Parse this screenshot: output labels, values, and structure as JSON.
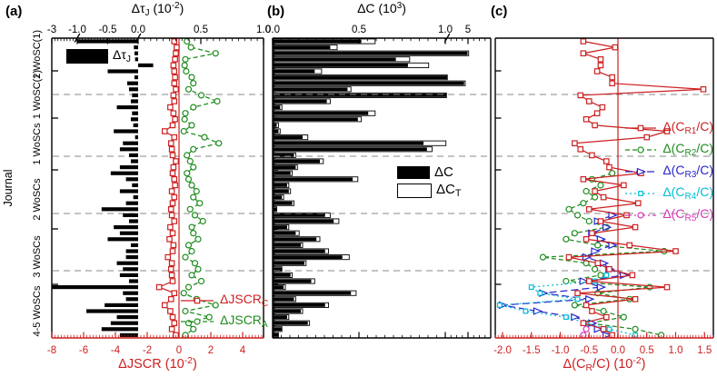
{
  "figure": {
    "panel_a_label": "(a)",
    "panel_b_label": "(b)",
    "panel_c_label": "(c)",
    "y_axis_title": "Journal",
    "journal_groups": [
      "1 WoSC(1)",
      "1 WoSC(2)",
      "1 WoSCs",
      "2 WoSCs",
      "3 WoSCs",
      "4-5 WoSCs"
    ]
  },
  "colors": {
    "red": "#cc2121",
    "green": "#1f8c1f",
    "blue": "#2626cc",
    "cyan": "#00bdd6",
    "magenta": "#d636b8",
    "gray_divider": "#8a8a8a",
    "bar_black": "#000000"
  },
  "panel_a": {
    "top_axis": {
      "title_parts": {
        "pre": "Δτ",
        "sub": "J",
        "mid": " (10",
        "sup": "-2",
        "end": ")"
      },
      "ticks": [
        {
          "label": "-3",
          "v": -3
        },
        {
          "label": "-1.0",
          "v": -1.0
        },
        {
          "label": "-0.5",
          "v": -0.5
        },
        {
          "label": "0.0",
          "v": 0.0
        },
        {
          "label": "0.5",
          "v": 0.5
        },
        {
          "label": "1.0",
          "v": 1.0
        }
      ]
    },
    "bottom_axis": {
      "title_parts": {
        "pre": "ΔJSCR (10",
        "sup": "-2",
        "end": ")"
      },
      "ticks": [
        {
          "label": "-8",
          "v": -8
        },
        {
          "label": "-6",
          "v": -6
        },
        {
          "label": "-4",
          "v": -4
        },
        {
          "label": "-2",
          "v": -2
        },
        {
          "label": "0",
          "v": 0
        },
        {
          "label": "2",
          "v": 2
        },
        {
          "label": "4",
          "v": 4
        }
      ]
    },
    "legend_bar": {
      "pre": "Δτ",
      "sub": "J"
    },
    "legend": [
      {
        "pre": "ΔJSCR",
        "sub": "C"
      },
      {
        "pre": "ΔJSCR",
        "sub": "A"
      }
    ]
  },
  "panel_b": {
    "top_axis": {
      "title_parts": {
        "pre": "ΔC (10",
        "sup": "3",
        "end": ")"
      },
      "ticks": [
        {
          "label": "0.0",
          "v": 0.0
        },
        {
          "label": "0.5",
          "v": 0.5
        },
        {
          "label": "1.0",
          "v": 1.0
        },
        {
          "label": "5",
          "v": 5
        }
      ]
    },
    "legend": [
      {
        "pre": "ΔC"
      },
      {
        "pre": "ΔC",
        "sub": "T"
      }
    ]
  },
  "panel_c": {
    "bottom_axis": {
      "title_parts": {
        "pre": "Δ(C",
        "sub": "R",
        "mid": "/C) (10",
        "sup": "-2",
        "end": ")"
      },
      "ticks": [
        {
          "label": "-2.0",
          "v": -2.0
        },
        {
          "label": "-1.5",
          "v": -1.5
        },
        {
          "label": "-1.0",
          "v": -1.0
        },
        {
          "label": "-0.5",
          "v": -0.5
        },
        {
          "label": "0.0",
          "v": 0.0
        },
        {
          "label": "0.5",
          "v": 0.5
        },
        {
          "label": "1.0",
          "v": 1.0
        },
        {
          "label": "1.5",
          "v": 1.5
        }
      ]
    },
    "legend": [
      {
        "pre": "Δ(C",
        "sub": "R1",
        "end": "/C)",
        "color_ref": "red"
      },
      {
        "pre": "Δ(C",
        "sub": "R2",
        "end": "/C)",
        "color_ref": "green"
      },
      {
        "pre": "Δ(C",
        "sub": "R3",
        "end": "/C)",
        "color_ref": "blue"
      },
      {
        "pre": "Δ(C",
        "sub": "R4",
        "end": "/C)",
        "color_ref": "cyan"
      },
      {
        "pre": "Δ(C",
        "sub": "R5",
        "end": "/C)",
        "color_ref": "magenta"
      }
    ]
  },
  "chart_data": {
    "type": "bar+line, horizontal, 3 linked panels sharing a categorical journal axis",
    "n_rows": 50,
    "journal_groups": [
      "1 WoSC(1)",
      "1 WoSC(2)",
      "1 WoSCs",
      "2 WoSCs",
      "3 WoSCs",
      "4-5 WoSCs"
    ],
    "group_row_counts": [
      5,
      8,
      9,
      10,
      9,
      9
    ],
    "axes": {
      "panel_a_top": {
        "label": "ΔτJ (10^-2)",
        "ticks": [
          -3,
          -1.0,
          -0.5,
          0.0,
          0.5,
          1.0
        ],
        "breaks": [
          -1.0,
          0.0
        ]
      },
      "panel_a_bottom": {
        "label": "ΔJSCR (10^-2)",
        "ticks": [
          -8,
          -6,
          -4,
          -2,
          0,
          2,
          4
        ]
      },
      "panel_b_top": {
        "label": "ΔC (10^3)",
        "ticks": [
          0.0,
          0.5,
          1.0,
          5
        ],
        "breaks": [
          1.0
        ]
      },
      "panel_c_bottom": {
        "label": "Δ(CR/C) (10^-2)",
        "ticks": [
          -2.0,
          -1.5,
          -1.0,
          -0.5,
          0.0,
          0.5,
          1.0,
          1.5
        ]
      }
    },
    "series": [
      {
        "key": "tau",
        "panel": "a",
        "name": "ΔτJ",
        "type": "bar",
        "color_ref": "bar_black",
        "values": [
          -1.0,
          -0.07,
          -0.06,
          -0.05,
          0.12,
          -0.5,
          -0.06,
          -0.18,
          -0.15,
          -0.1,
          -0.12,
          -0.35,
          -0.1,
          -0.12,
          -0.08,
          -0.4,
          -0.05,
          -0.25,
          -0.3,
          -0.15,
          -0.12,
          -0.3,
          -0.45,
          -0.2,
          -0.1,
          -0.3,
          -0.08,
          -0.2,
          -0.6,
          -0.25,
          -0.15,
          -0.4,
          -0.3,
          -0.5,
          -0.12,
          -0.2,
          -0.2,
          -0.35,
          -0.25,
          -0.3,
          -0.15,
          -3.0,
          -0.25,
          -0.2,
          -0.55,
          -0.85,
          -0.35,
          -0.45,
          -0.6,
          -0.3
        ]
      },
      {
        "key": "jscr_c",
        "panel": "a",
        "name": "ΔJSCR_C",
        "type": "line",
        "marker": "open-square",
        "linestyle": "solid",
        "color_ref": "red",
        "values": [
          -0.3,
          -0.15,
          -0.2,
          -0.25,
          -0.35,
          -0.3,
          -0.25,
          -0.3,
          -0.2,
          -0.35,
          -0.3,
          -0.55,
          -0.35,
          -0.25,
          -0.4,
          -0.9,
          -0.3,
          -0.5,
          -0.45,
          -0.4,
          -0.2,
          -0.35,
          -0.4,
          -0.3,
          -0.25,
          -0.45,
          -0.3,
          -0.4,
          -0.5,
          -0.45,
          -0.3,
          -0.55,
          -0.4,
          -0.6,
          -0.35,
          -0.4,
          -0.7,
          -0.45,
          -0.5,
          -0.45,
          -0.4,
          -1.25,
          -0.3,
          -0.5,
          -0.9,
          -0.55,
          -0.4,
          -0.3,
          -0.45,
          -0.2
        ]
      },
      {
        "key": "jscr_a",
        "panel": "a",
        "name": "ΔJSCR_A",
        "type": "line",
        "marker": "open-circle",
        "linestyle": "dashed",
        "color_ref": "green",
        "values": [
          0.5,
          0.75,
          2.3,
          0.4,
          0.35,
          0.45,
          0.8,
          0.9,
          0.6,
          1.4,
          2.4,
          0.9,
          0.4,
          0.35,
          0.8,
          0.3,
          1.6,
          2.5,
          0.9,
          0.5,
          0.7,
          0.9,
          0.5,
          0.6,
          0.8,
          1.1,
          0.9,
          1.3,
          0.7,
          1.0,
          1.5,
          0.8,
          0.9,
          1.2,
          0.6,
          0.8,
          0.4,
          1.0,
          1.2,
          0.8,
          1.4,
          0.6,
          0.3,
          1.1,
          2.3,
          0.4,
          1.9,
          0.6,
          0.9,
          0.4
        ]
      },
      {
        "key": "dc",
        "panel": "b",
        "name": "ΔC",
        "type": "bar",
        "color_ref": "bar_black",
        "values": [
          0.51,
          0.33,
          4.8,
          0.71,
          0.78,
          0.24,
          1.2,
          4.2,
          0.43,
          1.05,
          0.31,
          0.04,
          0.55,
          0.49,
          0.02,
          0.03,
          0.17,
          0.87,
          0.89,
          0.12,
          0.27,
          0.13,
          0.1,
          0.46,
          0.08,
          0.09,
          0.05,
          0.11,
          0.02,
          0.3,
          0.35,
          0.08,
          0.13,
          0.25,
          0.16,
          0.3,
          0.4,
          0.18,
          0.05,
          0.1,
          0.22,
          0.06,
          0.45,
          0.12,
          0.3,
          0.16,
          0.08,
          0.2,
          0.05,
          0.03
        ]
      },
      {
        "key": "dct",
        "panel": "b",
        "name": "ΔC_T",
        "type": "bar-outline",
        "color_ref": "bar_black",
        "values": [
          0.59,
          0.37,
          5.0,
          0.79,
          0.9,
          0.28,
          1.25,
          4.4,
          0.45,
          1.1,
          0.33,
          0.05,
          0.59,
          0.51,
          0.03,
          0.04,
          0.2,
          1.0,
          0.92,
          0.13,
          0.29,
          0.14,
          0.11,
          0.49,
          0.09,
          0.1,
          0.06,
          0.12,
          0.02,
          0.33,
          0.38,
          0.09,
          0.15,
          0.27,
          0.17,
          0.32,
          0.44,
          0.19,
          0.05,
          0.11,
          0.24,
          0.07,
          0.48,
          0.13,
          0.32,
          0.17,
          0.09,
          0.21,
          0.05,
          0.03
        ]
      },
      {
        "key": "cr1",
        "panel": "c",
        "name": "Δ(CR1/C)",
        "type": "line",
        "marker": "open-square",
        "linestyle": "solid",
        "color_ref": "red",
        "values": [
          -0.6,
          -0.05,
          -0.6,
          -0.3,
          -0.3,
          -0.36,
          -0.1,
          -0.1,
          1.48,
          -0.65,
          -0.5,
          -0.27,
          -0.36,
          -0.55,
          -0.4,
          0.85,
          0.5,
          -0.75,
          -0.65,
          -0.45,
          -0.2,
          -0.15,
          0.4,
          -0.6,
          0.1,
          -0.4,
          -0.25,
          0.35,
          -0.5,
          0.15,
          -0.3,
          0.3,
          -0.45,
          -0.55,
          0.2,
          1.0,
          -0.85,
          -0.35,
          -0.15,
          0.25,
          -0.5,
          0.85,
          -0.7,
          0.3,
          -0.55,
          -0.45,
          -0.2,
          -0.6,
          -0.25,
          -0.1
        ]
      },
      {
        "key": "cr2",
        "panel": "c",
        "name": "Δ(CR2/C)",
        "type": "line",
        "marker": "open-circle",
        "linestyle": "dashed",
        "color_ref": "green",
        "values": [
          null,
          null,
          null,
          null,
          null,
          null,
          null,
          null,
          null,
          null,
          null,
          null,
          null,
          null,
          null,
          null,
          null,
          null,
          null,
          null,
          null,
          null,
          -0.1,
          -0.45,
          -0.3,
          -0.55,
          -0.4,
          -0.6,
          -0.85,
          -0.7,
          -0.5,
          -0.2,
          -0.75,
          -0.9,
          -0.35,
          0.8,
          -1.3,
          -0.55,
          -0.4,
          -0.3,
          -0.9,
          0.55,
          -0.35,
          0.2,
          -0.75,
          -0.25,
          0.1,
          -0.5,
          0.3,
          0.75
        ]
      },
      {
        "key": "cr3",
        "panel": "c",
        "name": "Δ(CR3/C)",
        "type": "line",
        "marker": "open-triangle-right",
        "linestyle": "dashed",
        "color_ref": "blue",
        "values": [
          null,
          null,
          null,
          null,
          null,
          null,
          null,
          null,
          null,
          null,
          null,
          null,
          null,
          null,
          null,
          null,
          null,
          null,
          null,
          null,
          null,
          null,
          null,
          null,
          null,
          null,
          null,
          null,
          null,
          -0.1,
          -0.35,
          -0.2,
          -0.45,
          -0.3,
          -0.1,
          -0.4,
          -0.55,
          -0.25,
          -0.15,
          0.1,
          -0.6,
          -0.3,
          -1.3,
          -0.5,
          -2.0,
          -1.4,
          -0.75,
          -0.45,
          -0.35,
          -0.2
        ]
      },
      {
        "key": "cr4",
        "panel": "c",
        "name": "Δ(CR4/C)",
        "type": "line",
        "marker": "open-square-small",
        "linestyle": "dotted",
        "color_ref": "cyan",
        "values": [
          null,
          null,
          null,
          null,
          null,
          null,
          null,
          null,
          null,
          null,
          null,
          null,
          null,
          null,
          null,
          null,
          null,
          null,
          null,
          null,
          null,
          null,
          null,
          null,
          null,
          null,
          null,
          null,
          null,
          null,
          null,
          null,
          null,
          null,
          null,
          null,
          null,
          null,
          null,
          -0.2,
          -0.4,
          -1.5,
          -1.35,
          -0.7,
          -2.05,
          -1.6,
          -0.9,
          -0.55,
          -0.15,
          0.3
        ]
      },
      {
        "key": "cr5",
        "panel": "c",
        "name": "Δ(CR5/C)",
        "type": "line",
        "marker": "open-circle",
        "linestyle": "dash-dot",
        "color_ref": "magenta",
        "values": [
          null,
          null,
          null,
          null,
          null,
          null,
          null,
          null,
          null,
          null,
          null,
          null,
          null,
          null,
          null,
          null,
          null,
          null,
          null,
          null,
          null,
          null,
          null,
          null,
          null,
          null,
          null,
          null,
          null,
          null,
          null,
          null,
          null,
          null,
          null,
          null,
          null,
          null,
          null,
          null,
          null,
          null,
          null,
          null,
          null,
          null,
          null,
          null,
          -0.55,
          -0.6
        ]
      }
    ]
  }
}
